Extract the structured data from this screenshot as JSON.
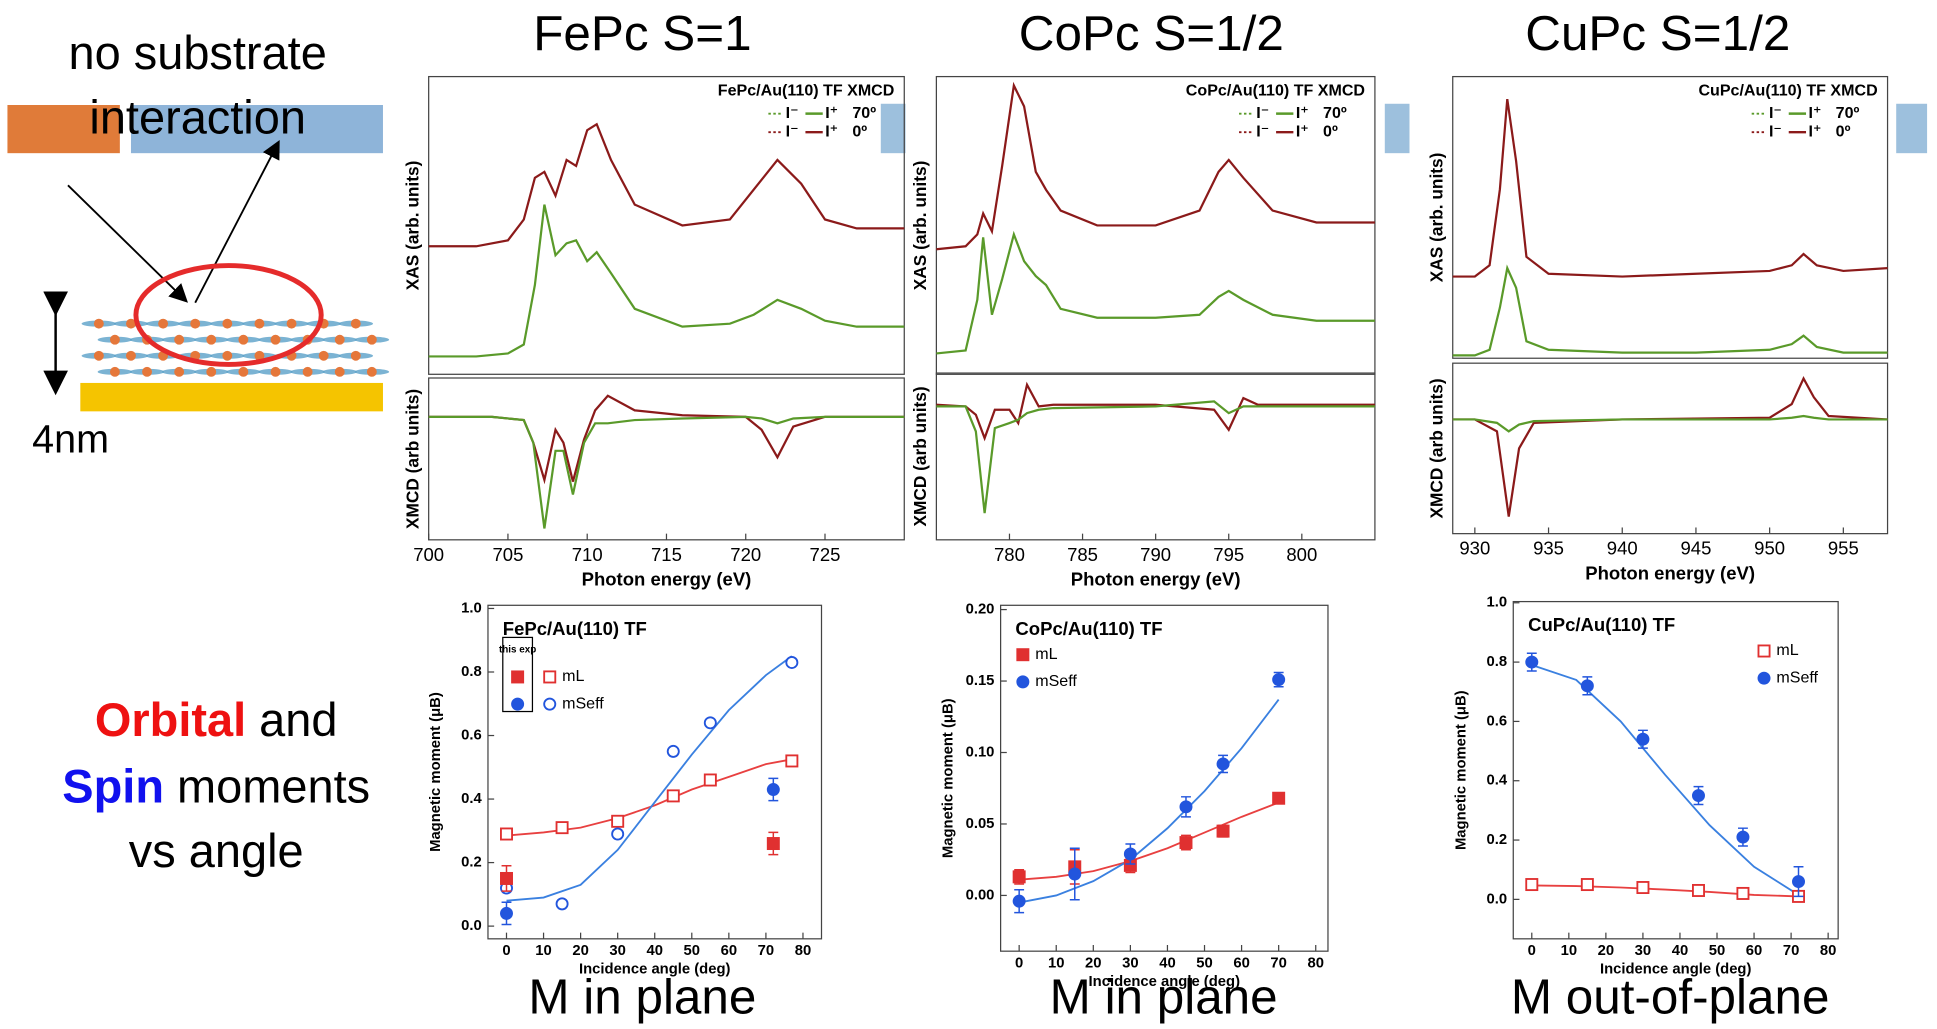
{
  "slide": {
    "left_caption": [
      "no substrate",
      "interaction"
    ],
    "thickness": "4nm",
    "summary": {
      "orbital": "Orbital",
      "and": "and",
      "spin": "Spin",
      "moments": "moments",
      "vs_angle": "vs angle"
    },
    "columns": [
      {
        "title": "FePc S=1",
        "caption": "M in plane"
      },
      {
        "title": "CoPc S=1/2",
        "caption": "M in plane"
      },
      {
        "title": "CuPc S=1/2",
        "caption": "M out-of-plane"
      }
    ]
  },
  "chart_data": [
    {
      "type": "line",
      "title": "FePc/Au(110) TF XMCD",
      "ylabel": "XAS (arb. units)",
      "legend_prefix": [
        "I⁻",
        "I⁺"
      ],
      "xlim": [
        700,
        730
      ],
      "ylim": [
        0,
        1
      ],
      "x": [
        700,
        703,
        705,
        706,
        706.7,
        707.3,
        708,
        708.7,
        709.3,
        710,
        710.6,
        711.5,
        713,
        716,
        719,
        720.5,
        722,
        723.5,
        725,
        727,
        730
      ],
      "series": [
        {
          "name": "70º",
          "color": "#5a9a2a",
          "values": [
            0.06,
            0.06,
            0.07,
            0.1,
            0.3,
            0.57,
            0.4,
            0.44,
            0.45,
            0.38,
            0.41,
            0.34,
            0.22,
            0.16,
            0.17,
            0.2,
            0.25,
            0.22,
            0.18,
            0.16,
            0.16
          ]
        },
        {
          "name": "0º",
          "color": "#8b1a1a",
          "values": [
            0.43,
            0.43,
            0.45,
            0.52,
            0.66,
            0.68,
            0.6,
            0.72,
            0.7,
            0.82,
            0.84,
            0.72,
            0.57,
            0.5,
            0.52,
            0.62,
            0.72,
            0.64,
            0.52,
            0.49,
            0.49
          ]
        }
      ]
    },
    {
      "type": "line",
      "ylabel": "XMCD (arb units)",
      "xlabel": "Photon energy (eV)",
      "xlim": [
        700,
        730
      ],
      "ylim": [
        0,
        1
      ],
      "xticks": [
        700,
        705,
        710,
        715,
        720,
        725
      ],
      "x": [
        700,
        704,
        706,
        706.6,
        707.3,
        708,
        708.5,
        709.1,
        709.8,
        710.5,
        711.3,
        713,
        716,
        720,
        721,
        722,
        723,
        725,
        730
      ],
      "series": [
        {
          "color": "#8b1a1a",
          "values": [
            0.76,
            0.76,
            0.74,
            0.6,
            0.37,
            0.68,
            0.6,
            0.36,
            0.62,
            0.8,
            0.89,
            0.8,
            0.77,
            0.76,
            0.68,
            0.51,
            0.7,
            0.76,
            0.76
          ]
        },
        {
          "color": "#5a9a2a",
          "values": [
            0.76,
            0.76,
            0.74,
            0.6,
            0.07,
            0.55,
            0.55,
            0.28,
            0.6,
            0.72,
            0.72,
            0.74,
            0.75,
            0.76,
            0.75,
            0.72,
            0.75,
            0.76,
            0.76
          ]
        }
      ]
    },
    {
      "type": "scatter",
      "title": "FePc/Au(110) TF",
      "ylabel": "Magnetic moment (μB)",
      "xlabel": "Incidence angle (deg)",
      "legend": "upper left",
      "legend_title": "this exp",
      "xlim": [
        -5,
        85
      ],
      "ylim": [
        -0.04,
        1.01
      ],
      "xticks": [
        0,
        10,
        20,
        30,
        40,
        50,
        60,
        70,
        80
      ],
      "yticks": [
        {
          "value": 0,
          "label": "0.0"
        },
        0.2,
        0.4,
        0.6,
        0.8,
        {
          "value": 1,
          "label": "1.0"
        }
      ],
      "series": [
        {
          "name": "mL",
          "color": "#e03030",
          "marker": "square",
          "filled": false,
          "x": [
            0,
            15,
            30,
            45,
            55,
            77
          ],
          "values": [
            0.29,
            0.31,
            0.33,
            0.41,
            0.46,
            0.52
          ]
        },
        {
          "name": "mSeff",
          "color": "#2255dd",
          "marker": "circle",
          "filled": false,
          "x": [
            0,
            15,
            30,
            45,
            55,
            77
          ],
          "values": [
            0.12,
            0.07,
            0.29,
            0.55,
            0.64,
            0.83
          ]
        },
        {
          "color": "#e03030",
          "marker": "square",
          "filled": true,
          "x": [
            0,
            72
          ],
          "values": [
            0.15,
            0.26
          ],
          "errors": [
            0.04,
            0.035
          ]
        },
        {
          "color": "#2255dd",
          "marker": "circle",
          "filled": true,
          "x": [
            0,
            72
          ],
          "values": [
            0.04,
            0.43
          ],
          "errors": [
            0.035,
            0.035
          ]
        },
        {
          "color": "#e84040",
          "x": [
            0,
            10,
            20,
            30,
            40,
            50,
            60,
            70,
            77
          ],
          "values": [
            0.285,
            0.295,
            0.31,
            0.34,
            0.38,
            0.43,
            0.47,
            0.51,
            0.525
          ]
        },
        {
          "color": "#3a80e0",
          "x": [
            0,
            10,
            20,
            30,
            40,
            50,
            60,
            70,
            77
          ],
          "values": [
            0.08,
            0.09,
            0.13,
            0.24,
            0.39,
            0.54,
            0.68,
            0.79,
            0.85
          ]
        }
      ]
    },
    {
      "type": "line",
      "title": "CoPc/Au(110) TF XMCD",
      "ylabel": "XAS (arb. units)",
      "legend_prefix": [
        "I⁻",
        "I⁺"
      ],
      "xlim": [
        775,
        805
      ],
      "ylim": [
        0,
        1
      ],
      "x": [
        775,
        777,
        777.8,
        778.2,
        778.8,
        779.5,
        780.3,
        781,
        781.8,
        782.5,
        783.5,
        786,
        790,
        793,
        794.3,
        795,
        796,
        798,
        801,
        805
      ],
      "series": [
        {
          "name": "70º",
          "color": "#5a9a2a",
          "values": [
            0.07,
            0.08,
            0.25,
            0.46,
            0.2,
            0.32,
            0.47,
            0.38,
            0.33,
            0.3,
            0.22,
            0.19,
            0.19,
            0.2,
            0.26,
            0.28,
            0.25,
            0.2,
            0.18,
            0.18
          ]
        },
        {
          "name": "0º",
          "color": "#8b1a1a",
          "values": [
            0.42,
            0.43,
            0.47,
            0.54,
            0.48,
            0.7,
            0.97,
            0.9,
            0.68,
            0.62,
            0.55,
            0.5,
            0.5,
            0.55,
            0.68,
            0.72,
            0.66,
            0.55,
            0.51,
            0.51
          ]
        }
      ]
    },
    {
      "type": "line",
      "ylabel": "XMCD (arb units)",
      "xlabel": "Photon energy (eV)",
      "xlim": [
        775,
        805
      ],
      "ylim": [
        0,
        1
      ],
      "xticks": [
        780,
        785,
        790,
        795,
        800
      ],
      "x": [
        775,
        777,
        777.7,
        778.3,
        779,
        780,
        780.6,
        781.2,
        782,
        783,
        790,
        794,
        795,
        796,
        797,
        805
      ],
      "series": [
        {
          "color": "#8b1a1a",
          "values": [
            0.81,
            0.8,
            0.75,
            0.61,
            0.78,
            0.78,
            0.7,
            0.93,
            0.8,
            0.81,
            0.81,
            0.78,
            0.66,
            0.85,
            0.81,
            0.81
          ]
        },
        {
          "color": "#5a9a2a",
          "values": [
            0.8,
            0.8,
            0.65,
            0.16,
            0.67,
            0.7,
            0.72,
            0.76,
            0.78,
            0.79,
            0.8,
            0.83,
            0.76,
            0.8,
            0.8,
            0.8
          ]
        }
      ]
    },
    {
      "type": "scatter",
      "title": "CoPc/Au(110) TF",
      "ylabel": "Magnetic moment (μB)",
      "xlabel": "Incidence angle (deg)",
      "legend": "upper left",
      "xlim": [
        -5,
        83.3
      ],
      "ylim": [
        -0.039,
        0.203
      ],
      "xticks": [
        0,
        10,
        20,
        30,
        40,
        50,
        60,
        70,
        80
      ],
      "yticks": [
        {
          "value": 0,
          "label": "0.00"
        },
        {
          "value": 0.05,
          "label": "0.05"
        },
        {
          "value": 0.1,
          "label": "0.10"
        },
        {
          "value": 0.15,
          "label": "0.15"
        },
        {
          "value": 0.2,
          "label": "0.20"
        }
      ],
      "series": [
        {
          "name": "mL",
          "color": "#e03030",
          "marker": "square",
          "filled": true,
          "x": [
            0,
            15,
            30,
            45,
            55,
            70
          ],
          "values": [
            0.013,
            0.02,
            0.021,
            0.037,
            0.045,
            0.068
          ],
          "errors": [
            0.005,
            0.012,
            0.005,
            0.005,
            0.004,
            0.003
          ]
        },
        {
          "name": "mSeff",
          "color": "#2255dd",
          "marker": "circle",
          "filled": true,
          "x": [
            0,
            15,
            30,
            45,
            55,
            70
          ],
          "values": [
            -0.004,
            0.015,
            0.029,
            0.062,
            0.092,
            0.151
          ],
          "errors": [
            0.008,
            0.018,
            0.007,
            0.007,
            0.006,
            0.005
          ]
        },
        {
          "color": "#e84040",
          "x": [
            0,
            10,
            20,
            30,
            40,
            50,
            60,
            70
          ],
          "values": [
            0.011,
            0.013,
            0.017,
            0.024,
            0.033,
            0.044,
            0.055,
            0.065
          ]
        },
        {
          "color": "#3a80e0",
          "x": [
            0,
            10,
            20,
            30,
            40,
            50,
            60,
            70
          ],
          "values": [
            -0.005,
            0,
            0.01,
            0.025,
            0.047,
            0.073,
            0.103,
            0.137
          ]
        }
      ]
    },
    {
      "type": "line",
      "title": "CuPc/Au(110) TF XMCD",
      "ylabel": "XAS (arb. units)",
      "legend_prefix": [
        "I⁻",
        "I⁺"
      ],
      "xlim": [
        928.5,
        958
      ],
      "ylim": [
        0,
        1
      ],
      "x": [
        928.5,
        930,
        931,
        931.7,
        932.2,
        932.8,
        933.5,
        935,
        940,
        945,
        950,
        951.5,
        952.3,
        953.2,
        955,
        958
      ],
      "series": [
        {
          "name": "70º",
          "color": "#5a9a2a",
          "values": [
            0.01,
            0.01,
            0.03,
            0.18,
            0.32,
            0.25,
            0.06,
            0.03,
            0.02,
            0.02,
            0.03,
            0.05,
            0.08,
            0.04,
            0.02,
            0.02
          ]
        },
        {
          "name": "0º",
          "color": "#8b1a1a",
          "values": [
            0.29,
            0.29,
            0.33,
            0.6,
            0.92,
            0.7,
            0.36,
            0.3,
            0.29,
            0.3,
            0.31,
            0.33,
            0.37,
            0.33,
            0.31,
            0.32
          ]
        }
      ]
    },
    {
      "type": "line",
      "ylabel": "XMCD (arb units)",
      "xlabel": "Photon energy (eV)",
      "xlim": [
        928.5,
        958
      ],
      "ylim": [
        0,
        1
      ],
      "xticks": [
        930,
        935,
        940,
        945,
        950,
        955
      ],
      "x": [
        928.5,
        930,
        931.5,
        932.3,
        933,
        934,
        940,
        950,
        951.5,
        952.3,
        953,
        954,
        958
      ],
      "series": [
        {
          "color": "#8b1a1a",
          "values": [
            0.67,
            0.67,
            0.6,
            0.1,
            0.5,
            0.65,
            0.67,
            0.68,
            0.76,
            0.91,
            0.8,
            0.69,
            0.67
          ]
        },
        {
          "color": "#5a9a2a",
          "values": [
            0.67,
            0.67,
            0.65,
            0.6,
            0.64,
            0.66,
            0.67,
            0.67,
            0.68,
            0.69,
            0.68,
            0.67,
            0.67
          ]
        }
      ]
    },
    {
      "type": "scatter",
      "title": "CuPc/Au(110) TF",
      "ylabel": "Magnetic moment (μB)",
      "xlabel": "Incidence angle (deg)",
      "legend": "upper right",
      "xlim": [
        -5,
        82.7
      ],
      "ylim": [
        -0.133,
        1.004
      ],
      "xticks": [
        0,
        10,
        20,
        30,
        40,
        50,
        60,
        70,
        80
      ],
      "yticks": [
        {
          "value": 0,
          "label": "0.0"
        },
        0.2,
        0.4,
        0.6,
        0.8,
        {
          "value": 1,
          "label": "1.0"
        }
      ],
      "series": [
        {
          "name": "mL",
          "color": "#e03030",
          "marker": "square",
          "filled": false,
          "x": [
            0,
            15,
            30,
            45,
            57,
            72
          ],
          "values": [
            0.05,
            0.05,
            0.04,
            0.03,
            0.02,
            0.01
          ],
          "errors": [
            0.015,
            0.015,
            0.015,
            0.015,
            0.015,
            0.015
          ]
        },
        {
          "name": "mSeff",
          "color": "#2255dd",
          "marker": "circle",
          "filled": true,
          "x": [
            0,
            15,
            30,
            45,
            57,
            72
          ],
          "values": [
            0.8,
            0.72,
            0.54,
            0.35,
            0.21,
            0.06
          ],
          "errors": [
            0.03,
            0.03,
            0.03,
            0.03,
            0.03,
            0.05
          ]
        },
        {
          "color": "#e84040",
          "x": [
            0,
            12,
            24,
            36,
            48,
            60,
            72
          ],
          "values": [
            0.047,
            0.045,
            0.04,
            0.033,
            0.025,
            0.015,
            0.01
          ]
        },
        {
          "color": "#3a80e0",
          "x": [
            0,
            12,
            24,
            36,
            48,
            60,
            72
          ],
          "values": [
            0.79,
            0.74,
            0.6,
            0.42,
            0.25,
            0.11,
            0.015
          ]
        }
      ]
    }
  ]
}
